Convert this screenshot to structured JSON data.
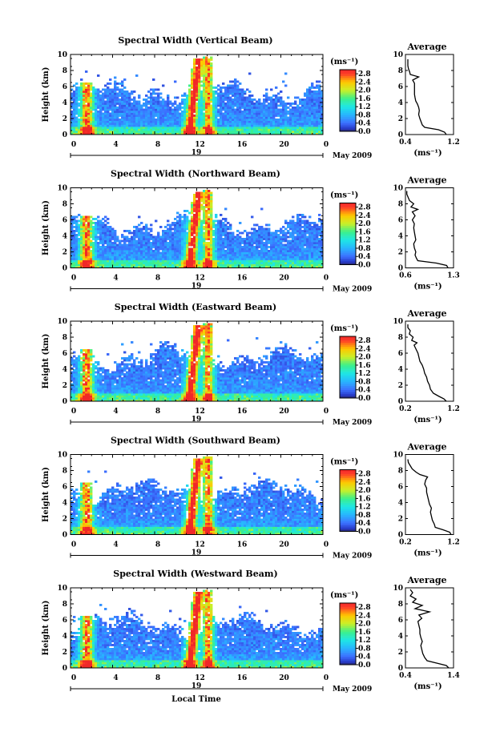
{
  "chart_data": [
    {
      "type": "heatmap",
      "title": "Spectral Width (Vertical Beam)",
      "beam": "vertical",
      "xlabel": "",
      "ylabel": "Height (km)",
      "x_ticks": [
        "0",
        "4",
        "8",
        "12",
        "16",
        "20",
        "0"
      ],
      "xlim": [
        0,
        24
      ],
      "y_ticks": [
        "0",
        "2",
        "4",
        "6",
        "8",
        "10"
      ],
      "ylim": [
        0,
        10
      ],
      "day_label": "19",
      "month_label": "May 2009",
      "colorbar": {
        "unit": "(ms⁻¹)",
        "ticks": [
          "0.0",
          "0.4",
          "0.8",
          "1.2",
          "1.6",
          "2.0",
          "2.4",
          "2.8"
        ],
        "range": [
          0,
          3.0
        ]
      },
      "average": {
        "title": "Average",
        "xlabel": "(ms⁻¹)",
        "x_ticks": [
          "0.4",
          "1.2"
        ],
        "xlim": [
          0.4,
          1.2
        ],
        "y_ticks": [
          "0",
          "2",
          "4",
          "6",
          "8",
          "10"
        ],
        "profile": [
          [
            0.0,
            1.08
          ],
          [
            0.3,
            1.05
          ],
          [
            0.6,
            0.95
          ],
          [
            0.9,
            0.72
          ],
          [
            1.2,
            0.68
          ],
          [
            1.6,
            0.66
          ],
          [
            2.0,
            0.64
          ],
          [
            2.5,
            0.62
          ],
          [
            3.0,
            0.63
          ],
          [
            3.4,
            0.62
          ],
          [
            3.8,
            0.6
          ],
          [
            4.2,
            0.57
          ],
          [
            4.6,
            0.56
          ],
          [
            5.0,
            0.55
          ],
          [
            5.5,
            0.55
          ],
          [
            6.0,
            0.55
          ],
          [
            6.4,
            0.55
          ],
          [
            6.8,
            0.52
          ],
          [
            7.2,
            0.62
          ],
          [
            7.5,
            0.48
          ],
          [
            7.8,
            0.47
          ],
          [
            8.2,
            0.45
          ],
          [
            8.6,
            0.44
          ],
          [
            9.0,
            0.44
          ],
          [
            9.4,
            0.44
          ]
        ]
      }
    },
    {
      "type": "heatmap",
      "title": "Spectral Width (Northward Beam)",
      "beam": "northward",
      "xlabel": "",
      "ylabel": "Height (km)",
      "x_ticks": [
        "0",
        "4",
        "8",
        "12",
        "16",
        "20",
        "0"
      ],
      "xlim": [
        0,
        24
      ],
      "y_ticks": [
        "0",
        "2",
        "4",
        "6",
        "8",
        "10"
      ],
      "ylim": [
        0,
        10
      ],
      "day_label": "19",
      "month_label": "May 2009",
      "colorbar": {
        "unit": "(ms⁻¹)",
        "ticks": [
          "0.0",
          "0.4",
          "0.8",
          "1.2",
          "1.6",
          "2.0",
          "2.4",
          "2.8"
        ],
        "range": [
          0,
          3.0
        ]
      },
      "average": {
        "title": "Average",
        "xlabel": "(ms⁻¹)",
        "x_ticks": [
          "0.6",
          "1.3"
        ],
        "xlim": [
          0.6,
          1.3
        ],
        "y_ticks": [
          "0",
          "2",
          "4",
          "6",
          "8",
          "10"
        ],
        "profile": [
          [
            0.0,
            1.22
          ],
          [
            0.3,
            1.2
          ],
          [
            0.6,
            1.05
          ],
          [
            0.9,
            0.78
          ],
          [
            1.2,
            0.76
          ],
          [
            1.6,
            0.74
          ],
          [
            2.0,
            0.75
          ],
          [
            2.5,
            0.73
          ],
          [
            3.0,
            0.72
          ],
          [
            3.5,
            0.75
          ],
          [
            4.0,
            0.74
          ],
          [
            4.5,
            0.73
          ],
          [
            5.0,
            0.72
          ],
          [
            5.5,
            0.73
          ],
          [
            6.0,
            0.7
          ],
          [
            6.5,
            0.74
          ],
          [
            7.0,
            0.7
          ],
          [
            7.3,
            0.78
          ],
          [
            7.6,
            0.68
          ],
          [
            8.0,
            0.72
          ],
          [
            8.4,
            0.66
          ],
          [
            8.8,
            0.64
          ],
          [
            9.2,
            0.62
          ],
          [
            9.6,
            0.62
          ]
        ]
      }
    },
    {
      "type": "heatmap",
      "title": "Spectral Width (Eastward Beam)",
      "beam": "eastward",
      "xlabel": "",
      "ylabel": "Height (km)",
      "x_ticks": [
        "0",
        "4",
        "8",
        "12",
        "16",
        "20",
        "0"
      ],
      "xlim": [
        0,
        24
      ],
      "y_ticks": [
        "0",
        "2",
        "4",
        "6",
        "8",
        "10"
      ],
      "ylim": [
        0,
        10
      ],
      "day_label": "19",
      "month_label": "May 2009",
      "colorbar": {
        "unit": "(ms⁻¹)",
        "ticks": [
          "0.0",
          "0.4",
          "0.8",
          "1.2",
          "1.6",
          "2.0",
          "2.4",
          "2.8"
        ],
        "range": [
          0,
          3.0
        ]
      },
      "average": {
        "title": "Average",
        "xlabel": "(ms⁻¹)",
        "x_ticks": [
          "0.2",
          "1.2"
        ],
        "xlim": [
          0.2,
          1.2
        ],
        "y_ticks": [
          "0",
          "2",
          "4",
          "6",
          "8",
          "10"
        ],
        "profile": [
          [
            0.0,
            1.05
          ],
          [
            0.3,
            1.0
          ],
          [
            0.6,
            0.9
          ],
          [
            1.0,
            0.78
          ],
          [
            1.5,
            0.72
          ],
          [
            2.0,
            0.7
          ],
          [
            2.5,
            0.66
          ],
          [
            3.0,
            0.64
          ],
          [
            3.5,
            0.6
          ],
          [
            4.0,
            0.58
          ],
          [
            4.5,
            0.55
          ],
          [
            5.0,
            0.5
          ],
          [
            5.5,
            0.48
          ],
          [
            6.0,
            0.46
          ],
          [
            6.5,
            0.42
          ],
          [
            7.0,
            0.38
          ],
          [
            7.3,
            0.44
          ],
          [
            7.6,
            0.33
          ],
          [
            8.0,
            0.36
          ],
          [
            8.4,
            0.28
          ],
          [
            8.8,
            0.3
          ],
          [
            9.2,
            0.25
          ],
          [
            9.6,
            0.25
          ]
        ]
      }
    },
    {
      "type": "heatmap",
      "title": "Spectral Width (Southward Beam)",
      "beam": "southward",
      "xlabel": "",
      "ylabel": "Height (km)",
      "x_ticks": [
        "0",
        "4",
        "8",
        "12",
        "16",
        "20",
        "0"
      ],
      "xlim": [
        0,
        24
      ],
      "y_ticks": [
        "0",
        "2",
        "4",
        "6",
        "8",
        "10"
      ],
      "ylim": [
        0,
        10
      ],
      "day_label": "19",
      "month_label": "May 2009",
      "colorbar": {
        "unit": "(ms⁻¹)",
        "ticks": [
          "0.0",
          "0.4",
          "0.8",
          "1.2",
          "1.6",
          "2.0",
          "2.4",
          "2.8"
        ],
        "range": [
          0,
          3.0
        ]
      },
      "average": {
        "title": "Average",
        "xlabel": "(ms⁻¹)",
        "x_ticks": [
          "0.2",
          "1.2"
        ],
        "xlim": [
          0.2,
          1.2
        ],
        "y_ticks": [
          "0",
          "2",
          "4",
          "6",
          "8",
          "10"
        ],
        "profile": [
          [
            0.0,
            1.15
          ],
          [
            0.3,
            1.12
          ],
          [
            0.6,
            0.98
          ],
          [
            0.9,
            0.82
          ],
          [
            1.3,
            0.8
          ],
          [
            1.8,
            0.76
          ],
          [
            2.3,
            0.74
          ],
          [
            2.8,
            0.72
          ],
          [
            3.3,
            0.74
          ],
          [
            3.8,
            0.7
          ],
          [
            4.3,
            0.68
          ],
          [
            4.8,
            0.66
          ],
          [
            5.3,
            0.64
          ],
          [
            5.8,
            0.64
          ],
          [
            6.3,
            0.6
          ],
          [
            6.8,
            0.62
          ],
          [
            7.2,
            0.66
          ],
          [
            7.5,
            0.5
          ],
          [
            7.8,
            0.42
          ],
          [
            8.2,
            0.34
          ],
          [
            8.6,
            0.3
          ],
          [
            9.0,
            0.26
          ],
          [
            9.4,
            0.25
          ]
        ]
      }
    },
    {
      "type": "heatmap",
      "title": "Spectral Width (Westward Beam)",
      "beam": "westward",
      "xlabel": "Local Time",
      "ylabel": "Height (km)",
      "x_ticks": [
        "0",
        "4",
        "8",
        "12",
        "16",
        "20",
        "0"
      ],
      "xlim": [
        0,
        24
      ],
      "y_ticks": [
        "0",
        "2",
        "4",
        "6",
        "8",
        "10"
      ],
      "ylim": [
        0,
        10
      ],
      "day_label": "19",
      "month_label": "May 2009",
      "colorbar": {
        "unit": "(ms⁻¹)",
        "ticks": [
          "0.0",
          "0.4",
          "0.8",
          "1.2",
          "1.6",
          "2.0",
          "2.4",
          "2.8"
        ],
        "range": [
          0,
          3.0
        ]
      },
      "average": {
        "title": "Average",
        "xlabel": "(ms⁻¹)",
        "x_ticks": [
          "0.4",
          "1.4"
        ],
        "xlim": [
          0.4,
          1.4
        ],
        "y_ticks": [
          "0",
          "2",
          "4",
          "6",
          "8",
          "10"
        ],
        "profile": [
          [
            0.0,
            1.3
          ],
          [
            0.3,
            1.25
          ],
          [
            0.6,
            1.05
          ],
          [
            0.9,
            0.85
          ],
          [
            1.3,
            0.8
          ],
          [
            1.8,
            0.76
          ],
          [
            2.3,
            0.74
          ],
          [
            2.8,
            0.72
          ],
          [
            3.3,
            0.75
          ],
          [
            3.8,
            0.72
          ],
          [
            4.3,
            0.7
          ],
          [
            4.8,
            0.7
          ],
          [
            5.3,
            0.68
          ],
          [
            5.8,
            0.66
          ],
          [
            6.2,
            0.74
          ],
          [
            6.6,
            0.68
          ],
          [
            7.0,
            0.9
          ],
          [
            7.4,
            0.6
          ],
          [
            7.8,
            0.75
          ],
          [
            8.2,
            0.55
          ],
          [
            8.6,
            0.62
          ],
          [
            9.0,
            0.5
          ],
          [
            9.4,
            0.55
          ],
          [
            9.8,
            0.5
          ]
        ]
      }
    }
  ]
}
